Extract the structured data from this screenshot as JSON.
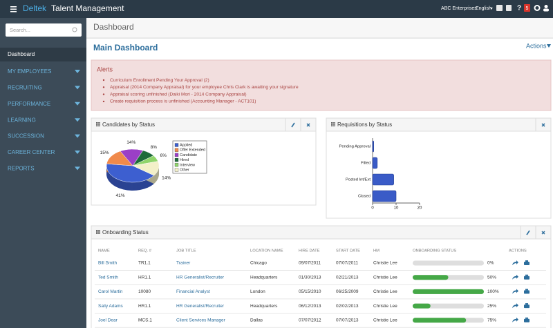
{
  "header": {
    "brand": "Deltek",
    "product": "Talent Management",
    "company": "ABC Enterprises",
    "language": "English",
    "notifications": "5"
  },
  "sidebar": {
    "search_placeholder": "Search...",
    "items": [
      "Dashboard",
      "MY EMPLOYEES",
      "RECRUITING",
      "PERFORMANCE",
      "LEARNING",
      "SUCCESSION",
      "CAREER CENTER",
      "REPORTS"
    ]
  },
  "page": {
    "breadcrumb": "Dashboard",
    "title": "Main Dashboard",
    "actions": "Actions"
  },
  "alerts": {
    "title": "Alerts",
    "items": [
      "Curriculum Enrollment Pending Your Approval (2)",
      "Appraisal (2014 Company Appraisal) for your employee Chris Clark is awaiting your signature",
      "Appraisal scoring unfinished (Daiki Mori - 2014 Company Appraisal)",
      "Create requisition process is unfinished (Accounting Manager - ACT101)"
    ]
  },
  "chart_data": [
    {
      "type": "pie",
      "title": "Candidates by Status",
      "categories": [
        "Applied",
        "Offer Extended",
        "Candidate",
        "Hired",
        "Interview",
        "Other"
      ],
      "values": [
        41,
        15,
        14,
        8,
        6,
        14
      ],
      "value_labels": [
        "41%",
        "15%",
        "14%",
        "8%",
        "6%",
        "14%"
      ],
      "colors": [
        "#3d5fd0",
        "#f08a4b",
        "#9b3fc6",
        "#1e6b3a",
        "#8fd46a",
        "#f3f0c8"
      ]
    },
    {
      "type": "bar",
      "orientation": "horizontal",
      "title": "Requisitions by Status",
      "categories": [
        "Pending Approval",
        "Filled",
        "Posted Int/Ext",
        "Closed"
      ],
      "values": [
        0.5,
        2,
        9,
        10
      ],
      "color": "#3a5bc7",
      "xlim": [
        0,
        20
      ],
      "xticks": [
        0,
        10,
        20
      ]
    }
  ],
  "onboarding": {
    "title": "Onboarding Status",
    "columns": [
      "NAME",
      "REQ. #",
      "JOB TITLE",
      "LOCATION NAME",
      "HIRE DATE",
      "START DATE",
      "HM",
      "ONBOARDING STATUS",
      "ACTIONS"
    ],
    "rows": [
      [
        "Bill Smith",
        "TR1.1",
        "Trainer",
        "Chicago",
        "09/07/2011",
        "07/07/2011",
        "Christie Lee"
      ],
      [
        "Ted Smith",
        "HR1.1",
        "HR Generalist/Recruiter",
        "Headquarters",
        "01/30/2013",
        "02/21/2013",
        "Christie Lee"
      ],
      [
        "Carol Martin",
        "10080",
        "Financial Analyst",
        "London",
        "05/15/2010",
        "06/25/2009",
        "Christie Lee"
      ],
      [
        "Sally Adams",
        "HR1.1",
        "HR Generalist/Recruiter",
        "Headquarters",
        "06/12/2013",
        "02/02/2013",
        "Christie Lee"
      ],
      [
        "Joel Dear",
        "MCS.1",
        "Client Services Manager",
        "Dallas",
        "07/07/2012",
        "07/07/2013",
        "Christie Lee"
      ]
    ],
    "progress": {
      "values": [
        0,
        50,
        100,
        25,
        75
      ],
      "value_labels": [
        "0%",
        "50%",
        "100%",
        "25%",
        "75%"
      ],
      "xlim": [
        0,
        100
      ]
    }
  }
}
